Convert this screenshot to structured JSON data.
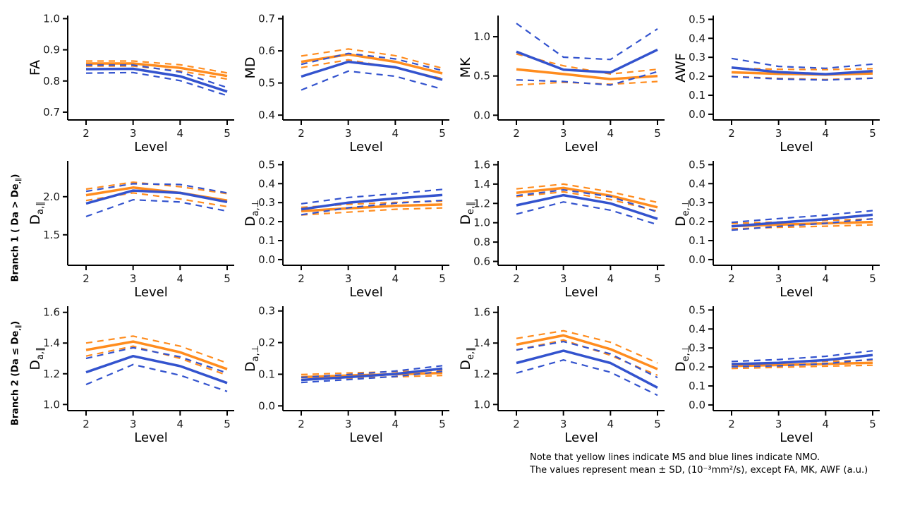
{
  "colors": {
    "ms": "#FF8C1E",
    "nmo": "#3353CE",
    "axis": "#000000",
    "tick_text": "#1a1a1a"
  },
  "legend": {
    "ms_label": "MS",
    "nmo_label": "NMO"
  },
  "rows": [
    {
      "label_prefix": "",
      "label_sub": "",
      "label_suffix": ""
    },
    {
      "label_prefix": "Branch 1 ( Da > De",
      "label_sub": ",∥",
      "label_suffix": ")"
    },
    {
      "label_prefix": "Branch 2 (Da ≤ De",
      "label_sub": ",∥",
      "label_suffix": ")"
    }
  ],
  "note": {
    "line1": "Note that yellow lines indicate MS and blue lines indicate NMO.",
    "line2": "The values represent mean ± SD, (10⁻³mm²/s), except FA, MK, AWF (a.u.)"
  },
  "chart_data": [
    {
      "type": "line",
      "id": "fa",
      "ylabel_main": "FA",
      "ylabel_sub": "",
      "xlabel": "Level",
      "x": [
        2,
        3,
        4,
        5
      ],
      "ylim": [
        0.675,
        1.01
      ],
      "yticks": [
        0.7,
        0.8,
        0.9,
        1.0
      ],
      "series": [
        {
          "name": "MS",
          "mean": [
            0.856,
            0.856,
            0.842,
            0.816
          ],
          "upper": [
            0.864,
            0.864,
            0.852,
            0.826
          ],
          "lower": [
            0.848,
            0.848,
            0.832,
            0.806
          ]
        },
        {
          "name": "NMO",
          "mean": [
            0.838,
            0.839,
            0.815,
            0.766
          ],
          "upper": [
            0.851,
            0.851,
            0.829,
            0.779
          ],
          "lower": [
            0.825,
            0.827,
            0.801,
            0.753
          ]
        }
      ]
    },
    {
      "type": "line",
      "id": "md",
      "ylabel_main": "MD",
      "ylabel_sub": "",
      "xlabel": "Level",
      "x": [
        2,
        3,
        4,
        5
      ],
      "ylim": [
        0.385,
        0.71
      ],
      "yticks": [
        0.4,
        0.5,
        0.6,
        0.7
      ],
      "series": [
        {
          "name": "MS",
          "mean": [
            0.566,
            0.589,
            0.566,
            0.53
          ],
          "upper": [
            0.584,
            0.606,
            0.585,
            0.546
          ],
          "lower": [
            0.548,
            0.572,
            0.547,
            0.514
          ]
        },
        {
          "name": "NMO",
          "mean": [
            0.52,
            0.566,
            0.549,
            0.51
          ],
          "upper": [
            0.558,
            0.592,
            0.575,
            0.539
          ],
          "lower": [
            0.478,
            0.537,
            0.521,
            0.481
          ]
        }
      ]
    },
    {
      "type": "line",
      "id": "mk",
      "ylabel_main": "MK",
      "ylabel_sub": "",
      "xlabel": "Level",
      "x": [
        2,
        3,
        4,
        5
      ],
      "ylim": [
        -0.06,
        1.27
      ],
      "yticks": [
        0.0,
        0.5,
        1.0
      ],
      "series": [
        {
          "name": "MS",
          "mean": [
            0.585,
            0.525,
            0.46,
            0.5
          ],
          "upper": [
            0.78,
            0.63,
            0.525,
            0.585
          ],
          "lower": [
            0.385,
            0.42,
            0.395,
            0.43
          ]
        },
        {
          "name": "NMO",
          "mean": [
            0.81,
            0.58,
            0.545,
            0.835
          ],
          "upper": [
            1.17,
            0.74,
            0.71,
            1.1
          ],
          "lower": [
            0.45,
            0.43,
            0.385,
            0.555
          ]
        }
      ]
    },
    {
      "type": "line",
      "id": "awf",
      "ylabel_main": "AWF",
      "ylabel_sub": "",
      "xlabel": "Level",
      "x": [
        2,
        3,
        4,
        5
      ],
      "ylim": [
        -0.03,
        0.52
      ],
      "yticks": [
        0.0,
        0.1,
        0.2,
        0.3,
        0.4,
        0.5
      ],
      "series": [
        {
          "name": "MS",
          "mean": [
            0.221,
            0.213,
            0.209,
            0.215
          ],
          "upper": [
            0.243,
            0.237,
            0.235,
            0.24
          ],
          "lower": [
            0.199,
            0.189,
            0.183,
            0.19
          ]
        },
        {
          "name": "NMO",
          "mean": [
            0.246,
            0.222,
            0.211,
            0.227
          ],
          "upper": [
            0.294,
            0.252,
            0.242,
            0.264
          ],
          "lower": [
            0.198,
            0.186,
            0.18,
            0.19
          ]
        }
      ]
    },
    {
      "type": "line",
      "id": "b1-da-par",
      "ylabel_main": "D",
      "ylabel_sub": "a,∥",
      "xlabel": "Level",
      "x": [
        2,
        3,
        4,
        5
      ],
      "ylim": [
        1.1,
        2.47
      ],
      "yticks": [
        1.5,
        2.0
      ],
      "series": [
        {
          "name": "MS",
          "mean": [
            2.02,
            2.12,
            2.05,
            1.95
          ],
          "upper": [
            2.1,
            2.19,
            2.13,
            2.04
          ],
          "lower": [
            1.95,
            2.05,
            1.97,
            1.87
          ]
        },
        {
          "name": "NMO",
          "mean": [
            1.91,
            2.08,
            2.05,
            1.93
          ],
          "upper": [
            2.07,
            2.17,
            2.16,
            2.05
          ],
          "lower": [
            1.74,
            1.96,
            1.93,
            1.81
          ]
        }
      ]
    },
    {
      "type": "line",
      "id": "b1-da-perp",
      "ylabel_main": "D",
      "ylabel_sub": "a,⊥",
      "xlabel": "Level",
      "x": [
        2,
        3,
        4,
        5
      ],
      "ylim": [
        -0.03,
        0.52
      ],
      "yticks": [
        0.0,
        0.1,
        0.2,
        0.3,
        0.4,
        0.5
      ],
      "series": [
        {
          "name": "MS",
          "mean": [
            0.255,
            0.27,
            0.283,
            0.29
          ],
          "upper": [
            0.275,
            0.291,
            0.301,
            0.308
          ],
          "lower": [
            0.235,
            0.25,
            0.265,
            0.272
          ]
        },
        {
          "name": "NMO",
          "mean": [
            0.265,
            0.3,
            0.322,
            0.34
          ],
          "upper": [
            0.294,
            0.327,
            0.347,
            0.37
          ],
          "lower": [
            0.236,
            0.273,
            0.297,
            0.312
          ]
        }
      ]
    },
    {
      "type": "line",
      "id": "b1-de-par",
      "ylabel_main": "D",
      "ylabel_sub": "e,∥",
      "xlabel": "Level",
      "x": [
        2,
        3,
        4,
        5
      ],
      "ylim": [
        0.56,
        1.64
      ],
      "yticks": [
        0.6,
        0.8,
        1.0,
        1.2,
        1.4,
        1.6
      ],
      "series": [
        {
          "name": "MS",
          "mean": [
            1.31,
            1.36,
            1.28,
            1.16
          ],
          "upper": [
            1.35,
            1.4,
            1.32,
            1.21
          ],
          "lower": [
            1.27,
            1.32,
            1.24,
            1.12
          ]
        },
        {
          "name": "NMO",
          "mean": [
            1.18,
            1.285,
            1.2,
            1.04
          ],
          "upper": [
            1.28,
            1.34,
            1.27,
            1.11
          ],
          "lower": [
            1.09,
            1.215,
            1.13,
            0.98
          ]
        }
      ]
    },
    {
      "type": "line",
      "id": "b1-de-perp",
      "ylabel_main": "D",
      "ylabel_sub": "e,⊥",
      "xlabel": "Level",
      "x": [
        2,
        3,
        4,
        5
      ],
      "ylim": [
        -0.03,
        0.52
      ],
      "yticks": [
        0.0,
        0.1,
        0.2,
        0.3,
        0.4,
        0.5
      ],
      "series": [
        {
          "name": "MS",
          "mean": [
            0.176,
            0.184,
            0.191,
            0.198
          ],
          "upper": [
            0.19,
            0.198,
            0.206,
            0.214
          ],
          "lower": [
            0.162,
            0.17,
            0.176,
            0.183
          ]
        },
        {
          "name": "NMO",
          "mean": [
            0.175,
            0.195,
            0.213,
            0.236
          ],
          "upper": [
            0.196,
            0.216,
            0.234,
            0.258
          ],
          "lower": [
            0.155,
            0.175,
            0.191,
            0.215
          ]
        }
      ]
    },
    {
      "type": "line",
      "id": "b2-da-par",
      "ylabel_main": "D",
      "ylabel_sub": "a,∥",
      "xlabel": "Level",
      "x": [
        2,
        3,
        4,
        5
      ],
      "ylim": [
        0.96,
        1.64
      ],
      "yticks": [
        1.0,
        1.2,
        1.4,
        1.6
      ],
      "series": [
        {
          "name": "MS",
          "mean": [
            1.355,
            1.41,
            1.34,
            1.23
          ],
          "upper": [
            1.4,
            1.445,
            1.38,
            1.27
          ],
          "lower": [
            1.315,
            1.38,
            1.3,
            1.19
          ]
        },
        {
          "name": "NMO",
          "mean": [
            1.21,
            1.315,
            1.25,
            1.14
          ],
          "upper": [
            1.3,
            1.37,
            1.31,
            1.205
          ],
          "lower": [
            1.13,
            1.26,
            1.19,
            1.085
          ]
        }
      ]
    },
    {
      "type": "line",
      "id": "b2-da-perp",
      "ylabel_main": "D",
      "ylabel_sub": "a,⊥",
      "xlabel": "Level",
      "x": [
        2,
        3,
        4,
        5
      ],
      "ylim": [
        -0.015,
        0.315
      ],
      "yticks": [
        0.0,
        0.1,
        0.2,
        0.3
      ],
      "series": [
        {
          "name": "MS",
          "mean": [
            0.091,
            0.096,
            0.1,
            0.104
          ],
          "upper": [
            0.099,
            0.104,
            0.108,
            0.112
          ],
          "lower": [
            0.083,
            0.088,
            0.092,
            0.096
          ]
        },
        {
          "name": "NMO",
          "mean": [
            0.082,
            0.091,
            0.101,
            0.118
          ],
          "upper": [
            0.09,
            0.099,
            0.11,
            0.127
          ],
          "lower": [
            0.074,
            0.083,
            0.093,
            0.109
          ]
        }
      ]
    },
    {
      "type": "line",
      "id": "b2-de-par",
      "ylabel_main": "D",
      "ylabel_sub": "e,∥",
      "xlabel": "Level",
      "x": [
        2,
        3,
        4,
        5
      ],
      "ylim": [
        0.96,
        1.64
      ],
      "yticks": [
        1.0,
        1.2,
        1.4,
        1.6
      ],
      "series": [
        {
          "name": "MS",
          "mean": [
            1.39,
            1.45,
            1.36,
            1.23
          ],
          "upper": [
            1.43,
            1.48,
            1.405,
            1.27
          ],
          "lower": [
            1.355,
            1.42,
            1.32,
            1.19
          ]
        },
        {
          "name": "NMO",
          "mean": [
            1.27,
            1.35,
            1.27,
            1.11
          ],
          "upper": [
            1.355,
            1.41,
            1.33,
            1.175
          ],
          "lower": [
            1.205,
            1.29,
            1.21,
            1.06
          ]
        }
      ]
    },
    {
      "type": "line",
      "id": "b2-de-perp",
      "ylabel_main": "D",
      "ylabel_sub": "e,⊥",
      "xlabel": "Level",
      "x": [
        2,
        3,
        4,
        5
      ],
      "ylim": [
        -0.03,
        0.52
      ],
      "yticks": [
        0.0,
        0.1,
        0.2,
        0.3,
        0.4,
        0.5
      ],
      "series": [
        {
          "name": "MS",
          "mean": [
            0.205,
            0.21,
            0.216,
            0.222
          ],
          "upper": [
            0.218,
            0.223,
            0.229,
            0.236
          ],
          "lower": [
            0.192,
            0.198,
            0.204,
            0.209
          ]
        },
        {
          "name": "NMO",
          "mean": [
            0.215,
            0.222,
            0.236,
            0.263
          ],
          "upper": [
            0.229,
            0.239,
            0.256,
            0.285
          ],
          "lower": [
            0.201,
            0.206,
            0.217,
            0.241
          ]
        }
      ]
    }
  ]
}
